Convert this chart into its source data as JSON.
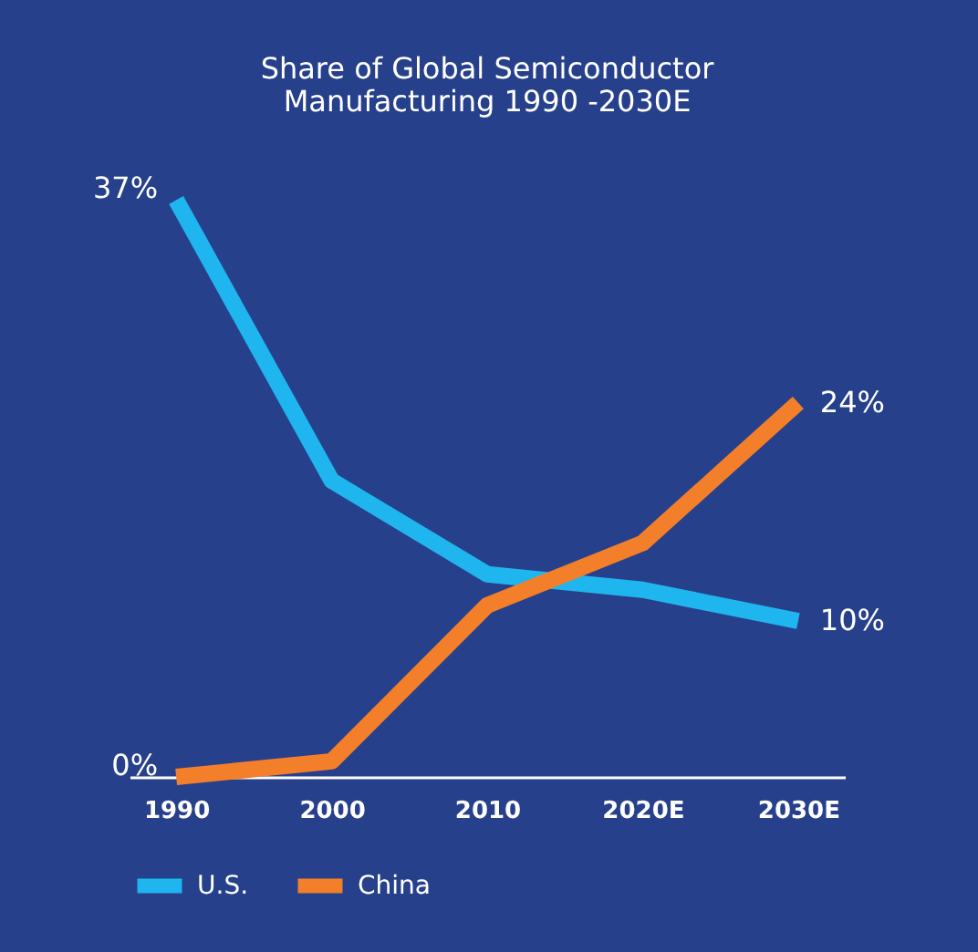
{
  "chart_data": {
    "type": "line",
    "title": [
      "Share of Global Semiconductor",
      "Manufacturing 1990 -2030E"
    ],
    "categories": [
      "1990",
      "2000",
      "2010",
      "2020E",
      "2030E"
    ],
    "series": [
      {
        "name": "U.S.",
        "color": "#1fb5ef",
        "values": [
          37,
          19,
          13,
          12,
          10
        ],
        "value_labels": [
          "37%",
          null,
          null,
          null,
          "10%"
        ]
      },
      {
        "name": "China",
        "color": "#f47f2a",
        "values": [
          0,
          1,
          11,
          15,
          24
        ],
        "value_labels": [
          "0%",
          null,
          null,
          null,
          "24%"
        ]
      }
    ],
    "legend": "bottom",
    "grid": false,
    "marker": "none",
    "line_style": "solid"
  }
}
